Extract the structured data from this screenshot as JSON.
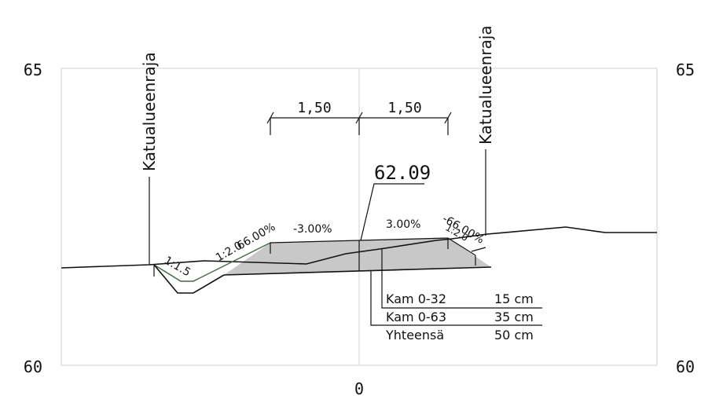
{
  "axes": {
    "y_top_left": "65",
    "y_top_right": "65",
    "y_bottom_left": "60",
    "y_bottom_right": "60",
    "x_center": "0"
  },
  "boundaries": {
    "left_label": "Katualueenraja",
    "right_label": "Katualueenraja"
  },
  "dimensions": {
    "left": "1,50",
    "right": "1,50"
  },
  "elevation": "62.09",
  "slopes": {
    "left_ditch": "1:1.5",
    "left_side": "1:2.0",
    "left_side_pct": "66.00%",
    "left_lane": "-3.00%",
    "right_lane": "3.00%",
    "right_side_pct": "-66.00%",
    "right_side": "1:2.0"
  },
  "layers": [
    {
      "name": "Kam 0-32",
      "thickness": "15 cm"
    },
    {
      "name": "Kam 0-63",
      "thickness": "35 cm"
    },
    {
      "name": "Yhteensä",
      "thickness": "50 cm"
    }
  ],
  "colors": {
    "grid": "#d9d9d9",
    "fill": "#c8c8c8",
    "line": "#111111",
    "slope_line": "#3d6b3d"
  }
}
